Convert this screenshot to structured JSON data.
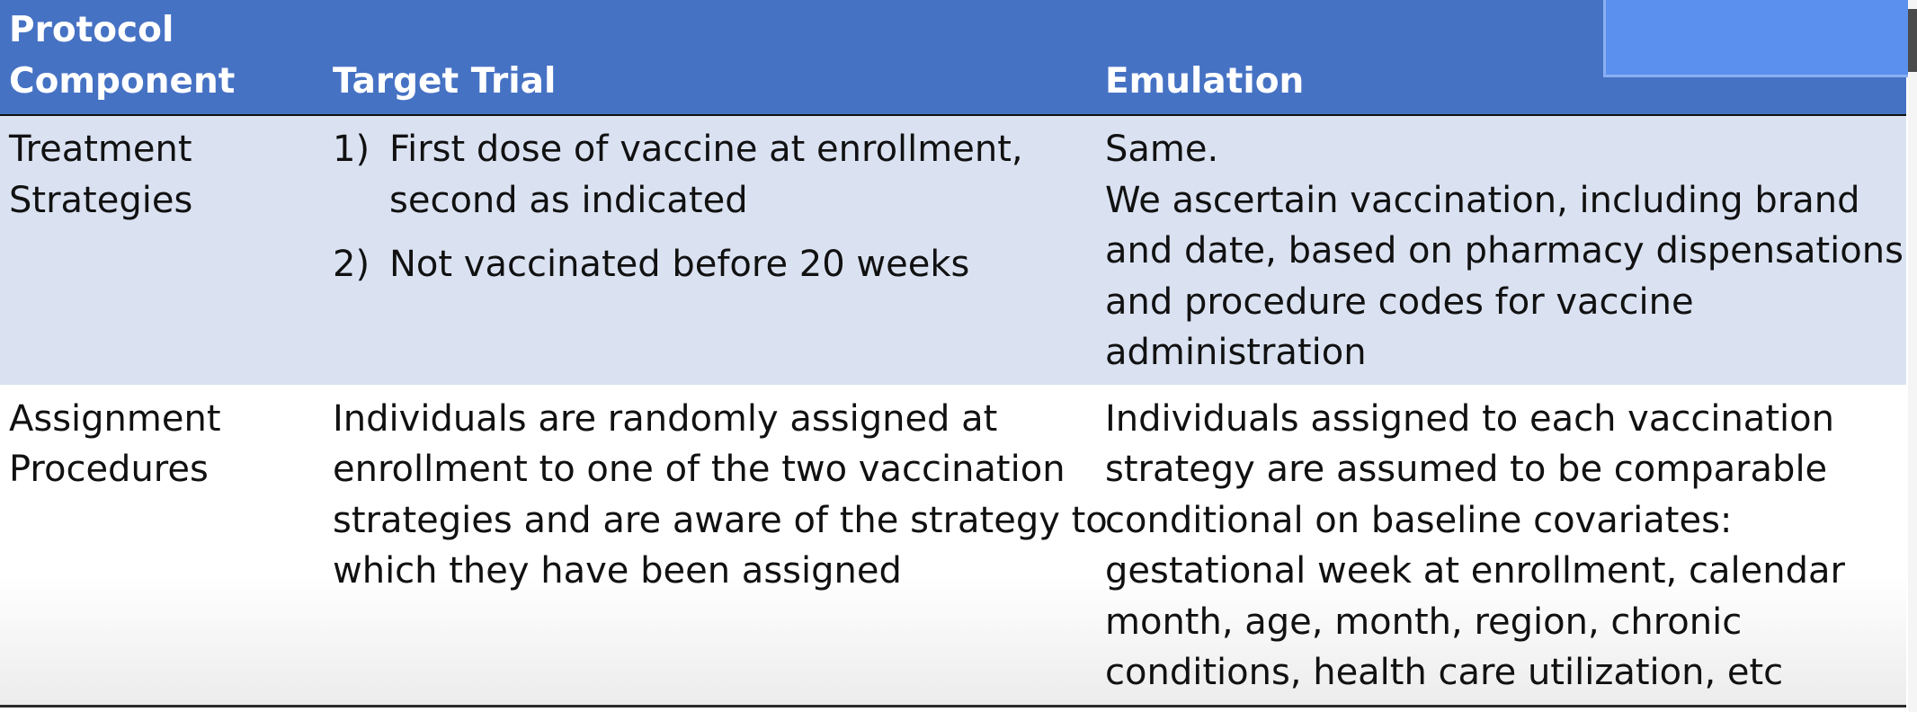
{
  "table": {
    "headers": {
      "component_line1": "Protocol",
      "component_line2": "Component",
      "target_trial": "Target Trial",
      "emulation": "Emulation"
    },
    "rows": [
      {
        "component_line1": "Treatment",
        "component_line2": "Strategies",
        "target_trial_items": [
          {
            "number": "1)",
            "line1": "First dose of vaccine at enrollment,",
            "line2": "second as indicated"
          },
          {
            "number": "2)",
            "line1": "Not vaccinated before 20 weeks"
          }
        ],
        "emulation_lines": [
          "Same.",
          "We ascertain vaccination, including brand",
          "and date, based on pharmacy dispensations",
          "and procedure codes for vaccine",
          "administration"
        ]
      },
      {
        "component_line1": "Assignment",
        "component_line2": "Procedures",
        "target_trial_lines": [
          "Individuals are randomly assigned at",
          "enrollment to one of the two vaccination",
          "strategies and are aware of the strategy to",
          "which they have been assigned"
        ],
        "emulation_lines": [
          "Individuals assigned to each vaccination",
          "strategy are assumed to be comparable",
          "conditional on baseline covariates:",
          "gestational week at enrollment, calendar",
          "month, age, month, region, chronic",
          "conditions, health care utilization, etc"
        ]
      }
    ]
  },
  "colors": {
    "header_bg": "#4672c4",
    "header_text": "#ffffff",
    "row1_bg": "#dae2f2",
    "row2_bg": "#ffffff",
    "corner_box": "#5b90ee"
  }
}
